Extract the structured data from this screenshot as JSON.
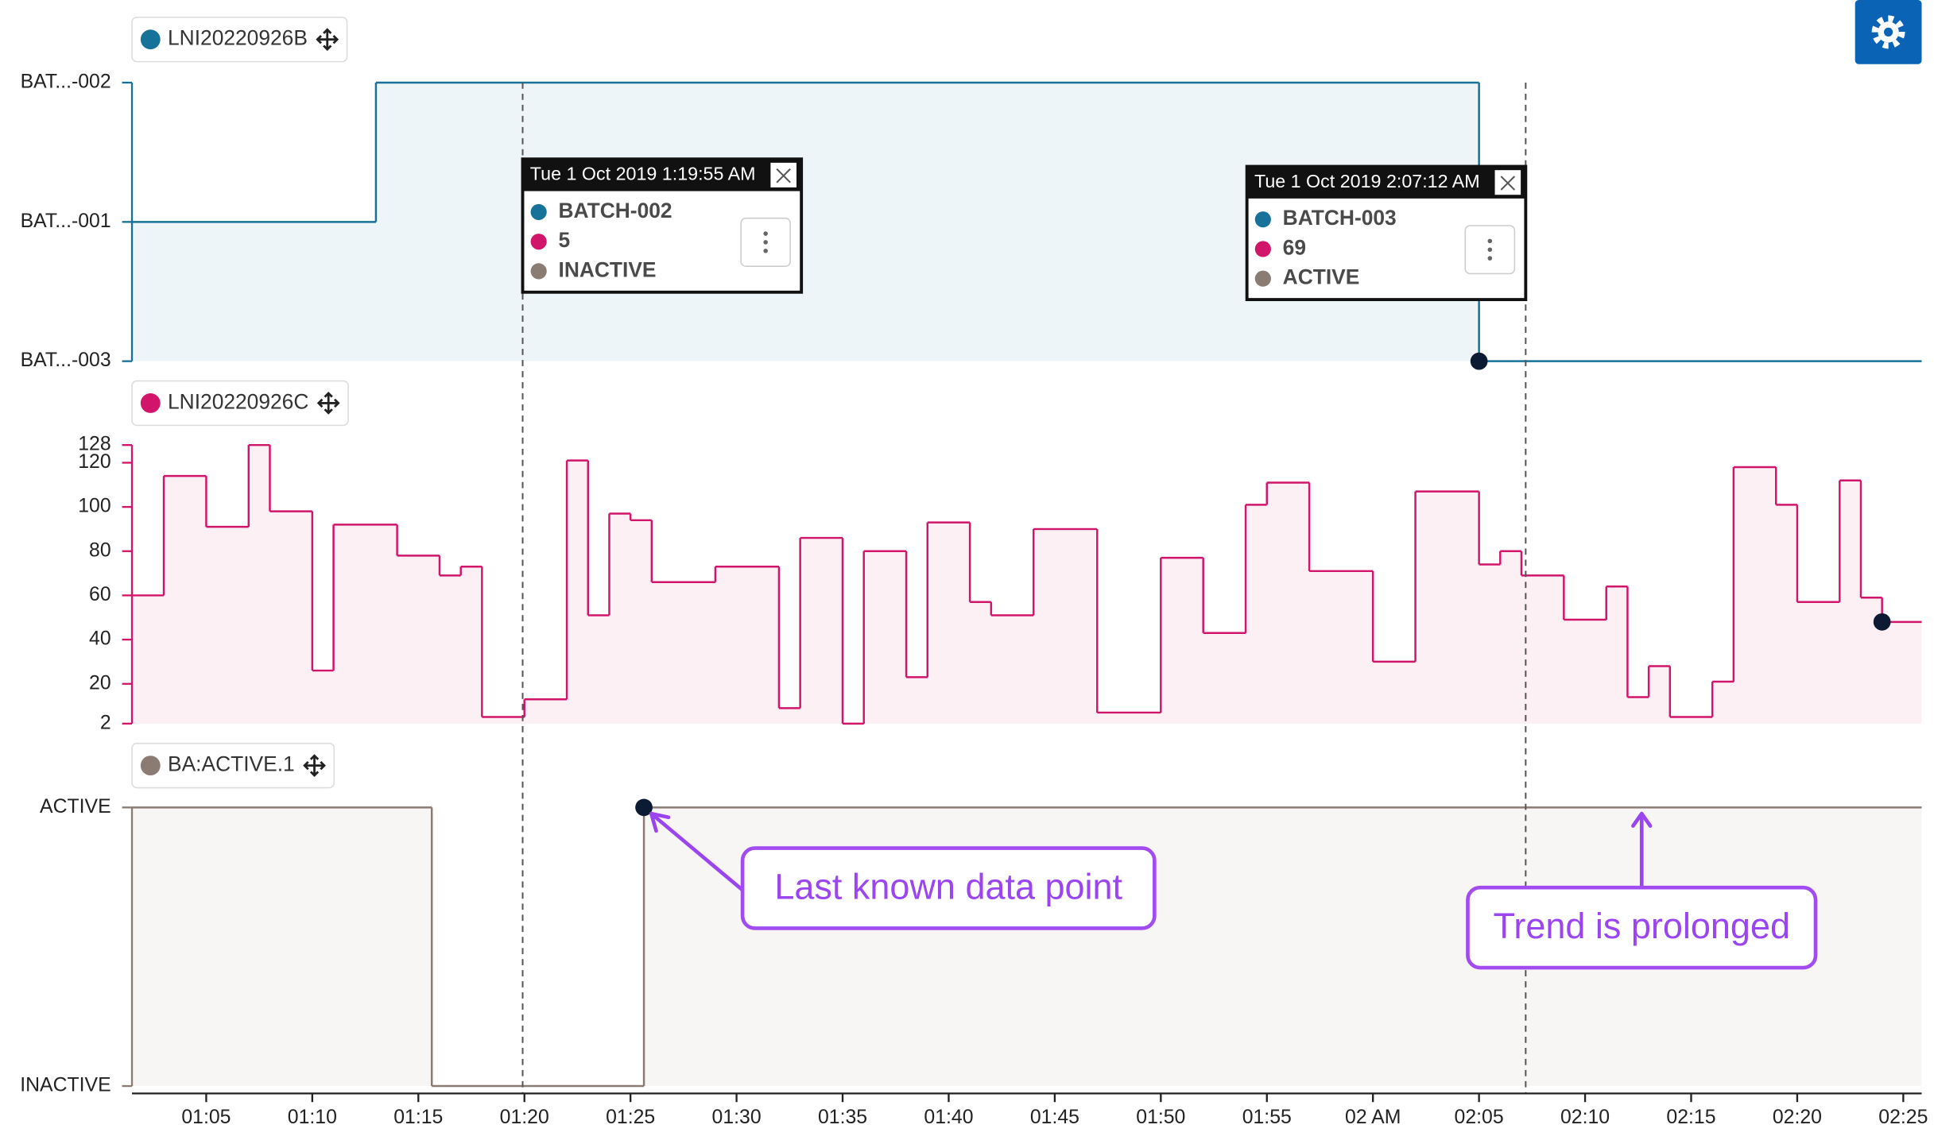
{
  "chart_data": [
    {
      "type": "line",
      "drawstyle": "steps-post",
      "fill": "#eef5f8",
      "x": [
        "01:01:30",
        "01:13",
        "02:05"
      ],
      "series": [
        {
          "name": "LNI20220926B",
          "color": "#17729a",
          "values": [
            "BATCH-001",
            "BATCH-002",
            "BATCH-003"
          ]
        }
      ],
      "ycategories": [
        {
          "value": "BATCH-003",
          "label": "BAT...-003"
        },
        {
          "value": "BATCH-001",
          "label": "BAT...-001"
        },
        {
          "value": "BATCH-002",
          "label": "BAT...-002"
        }
      ]
    },
    {
      "type": "line",
      "drawstyle": "steps-post",
      "fill": "#fcf0f5",
      "x": [
        "01:01:30",
        "01:03",
        "01:05",
        "01:07",
        "01:08",
        "01:10",
        "01:11",
        "01:14",
        "01:16",
        "01:17",
        "01:18",
        "01:20",
        "01:22",
        "01:23",
        "01:24",
        "01:25",
        "01:26",
        "01:29",
        "01:32",
        "01:33",
        "01:35",
        "01:36",
        "01:38",
        "01:39",
        "01:41",
        "01:42",
        "01:44",
        "01:47",
        "01:50",
        "01:52",
        "01:54",
        "01:55",
        "01:57",
        "02:00",
        "02:02",
        "02:05",
        "02:06",
        "02:07",
        "02:09",
        "02:11",
        "02:12",
        "02:13",
        "02:14",
        "02:16",
        "02:17",
        "02:19",
        "02:20",
        "02:22",
        "02:23",
        "02:24"
      ],
      "series": [
        {
          "name": "LNI20220926C",
          "color": "#d1156b",
          "values": [
            60,
            114,
            91,
            128,
            98,
            26,
            92,
            78,
            69,
            73,
            5,
            13,
            121,
            51,
            97,
            94,
            66,
            73,
            9,
            86,
            2,
            80,
            23,
            93,
            57,
            51,
            90,
            7,
            77,
            43,
            101,
            111,
            71,
            30,
            107,
            74,
            80,
            69,
            49,
            64,
            14,
            28,
            5,
            21,
            118,
            101,
            57,
            112,
            59,
            48
          ]
        }
      ],
      "ylim": [
        2,
        128
      ],
      "yticks": [
        2,
        20,
        40,
        60,
        80,
        100,
        120,
        128
      ]
    },
    {
      "type": "line",
      "drawstyle": "steps-post",
      "fill": "#f8f6f4",
      "x": [
        "01:01:30",
        "01:15:38",
        "01:25:38"
      ],
      "series": [
        {
          "name": "BA:ACTIVE.1",
          "color": "#8a7b73",
          "values": [
            "ACTIVE",
            "INACTIVE",
            "ACTIVE"
          ]
        }
      ],
      "ycategories": [
        "INACTIVE",
        "ACTIVE"
      ]
    }
  ],
  "xaxis": {
    "xlim": [
      "01:01:30",
      "02:25:52"
    ],
    "xticks": [
      "01:05",
      "01:10",
      "01:15",
      "01:20",
      "01:25",
      "01:30",
      "01:35",
      "01:40",
      "01:45",
      "01:50",
      "01:55",
      {
        "value": "02:00",
        "label": "02 AM"
      },
      "02:05",
      "02:10",
      "02:15",
      "02:20",
      "02:25"
    ]
  },
  "tooltips": [
    {
      "x": "01:19:55",
      "title": "Tue 1 Oct 2019 1:19:55 AM",
      "items": [
        "BATCH-002",
        5,
        "INACTIVE"
      ]
    },
    {
      "x": "02:07:12",
      "title": "Tue 1 Oct 2019 2:07:12 AM",
      "items": [
        "BATCH-003",
        69,
        "ACTIVE"
      ]
    }
  ],
  "annotations": [
    "Last known data point",
    "Trend is prolonged"
  ]
}
